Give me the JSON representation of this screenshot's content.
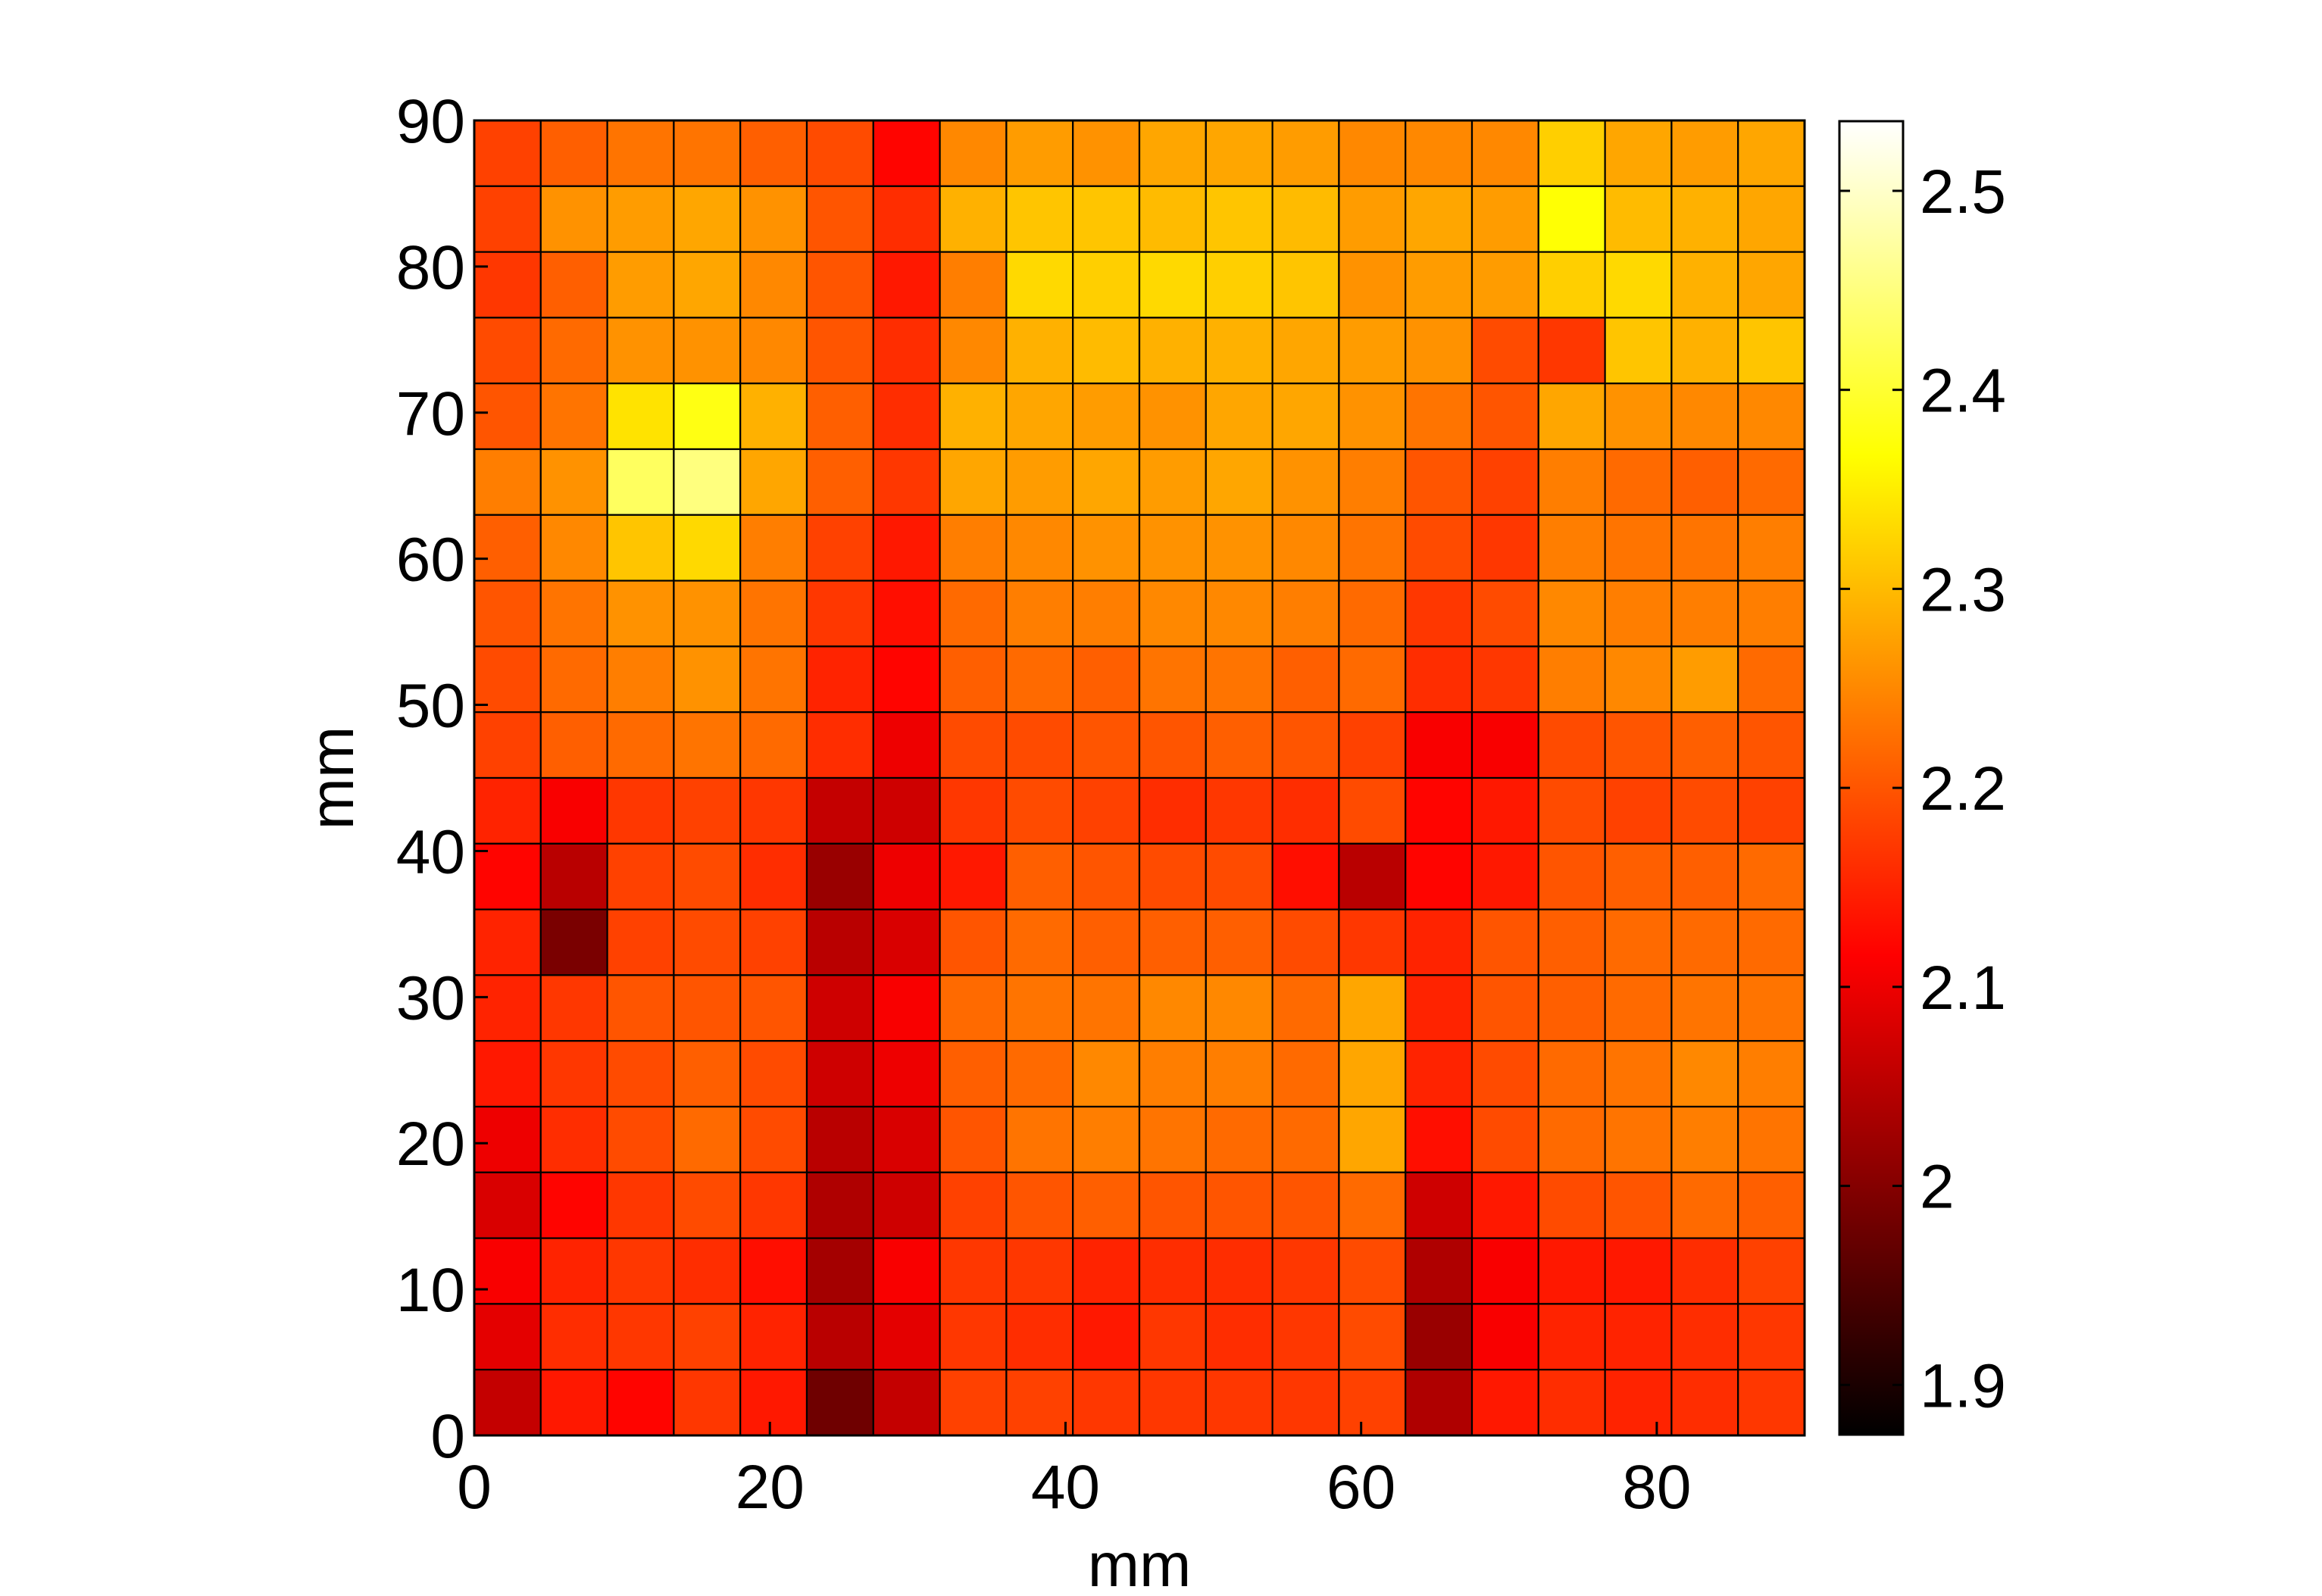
{
  "chart_data": {
    "type": "heatmap",
    "title": "",
    "xlabel": "mm",
    "ylabel": "mm",
    "x_range": [
      0,
      90
    ],
    "y_range": [
      0,
      90
    ],
    "x_ticks": [
      "0",
      "20",
      "40",
      "60",
      "80"
    ],
    "y_ticks": [
      "0",
      "10",
      "20",
      "30",
      "40",
      "50",
      "60",
      "70",
      "80",
      "90"
    ],
    "grid": true,
    "colormap": "hot",
    "color_range": [
      1.875,
      2.535
    ],
    "colorbar_ticks": [
      "1.9",
      "2",
      "2.1",
      "2.2",
      "2.3",
      "2.4",
      "2.5"
    ],
    "cell_size_mm": 4.5,
    "values_rows_top_to_bottom": [
      [
        2.18,
        2.21,
        2.23,
        2.23,
        2.21,
        2.19,
        2.12,
        2.25,
        2.27,
        2.26,
        2.28,
        2.28,
        2.27,
        2.25,
        2.25,
        2.25,
        2.32,
        2.28,
        2.27,
        2.28
      ],
      [
        2.18,
        2.26,
        2.27,
        2.28,
        2.26,
        2.2,
        2.16,
        2.29,
        2.31,
        2.31,
        2.3,
        2.31,
        2.3,
        2.27,
        2.28,
        2.27,
        2.37,
        2.3,
        2.29,
        2.28
      ],
      [
        2.17,
        2.21,
        2.27,
        2.28,
        2.25,
        2.2,
        2.14,
        2.24,
        2.33,
        2.32,
        2.33,
        2.32,
        2.31,
        2.26,
        2.27,
        2.27,
        2.32,
        2.33,
        2.29,
        2.28
      ],
      [
        2.19,
        2.22,
        2.26,
        2.26,
        2.25,
        2.2,
        2.16,
        2.25,
        2.29,
        2.3,
        2.29,
        2.29,
        2.28,
        2.27,
        2.26,
        2.19,
        2.17,
        2.31,
        2.29,
        2.31
      ],
      [
        2.2,
        2.23,
        2.34,
        2.38,
        2.29,
        2.21,
        2.16,
        2.29,
        2.28,
        2.27,
        2.26,
        2.28,
        2.28,
        2.26,
        2.23,
        2.2,
        2.28,
        2.26,
        2.25,
        2.25
      ],
      [
        2.24,
        2.26,
        2.43,
        2.45,
        2.28,
        2.21,
        2.17,
        2.28,
        2.27,
        2.28,
        2.27,
        2.28,
        2.26,
        2.24,
        2.2,
        2.18,
        2.24,
        2.22,
        2.21,
        2.22
      ],
      [
        2.21,
        2.25,
        2.31,
        2.33,
        2.24,
        2.18,
        2.14,
        2.24,
        2.25,
        2.26,
        2.26,
        2.26,
        2.25,
        2.23,
        2.19,
        2.17,
        2.24,
        2.23,
        2.23,
        2.24
      ],
      [
        2.2,
        2.23,
        2.26,
        2.26,
        2.23,
        2.17,
        2.13,
        2.22,
        2.24,
        2.24,
        2.25,
        2.25,
        2.24,
        2.22,
        2.17,
        2.19,
        2.25,
        2.24,
        2.24,
        2.24
      ],
      [
        2.19,
        2.22,
        2.24,
        2.26,
        2.23,
        2.15,
        2.12,
        2.21,
        2.22,
        2.21,
        2.23,
        2.23,
        2.21,
        2.22,
        2.16,
        2.17,
        2.24,
        2.25,
        2.27,
        2.22
      ],
      [
        2.18,
        2.21,
        2.22,
        2.23,
        2.22,
        2.16,
        2.1,
        2.19,
        2.19,
        2.2,
        2.2,
        2.21,
        2.2,
        2.18,
        2.11,
        2.11,
        2.19,
        2.2,
        2.21,
        2.2
      ],
      [
        2.15,
        2.11,
        2.17,
        2.18,
        2.17,
        2.06,
        2.07,
        2.17,
        2.19,
        2.18,
        2.16,
        2.17,
        2.16,
        2.19,
        2.12,
        2.14,
        2.19,
        2.18,
        2.19,
        2.18
      ],
      [
        2.12,
        2.05,
        2.18,
        2.19,
        2.16,
        2.02,
        2.1,
        2.14,
        2.21,
        2.2,
        2.19,
        2.19,
        2.13,
        2.05,
        2.12,
        2.14,
        2.2,
        2.21,
        2.21,
        2.22
      ],
      [
        2.15,
        1.99,
        2.18,
        2.19,
        2.18,
        2.05,
        2.08,
        2.2,
        2.22,
        2.21,
        2.21,
        2.21,
        2.19,
        2.17,
        2.15,
        2.2,
        2.21,
        2.22,
        2.22,
        2.22
      ],
      [
        2.15,
        2.17,
        2.2,
        2.2,
        2.2,
        2.07,
        2.11,
        2.22,
        2.23,
        2.23,
        2.25,
        2.25,
        2.22,
        2.28,
        2.15,
        2.2,
        2.21,
        2.22,
        2.23,
        2.23
      ],
      [
        2.14,
        2.17,
        2.19,
        2.21,
        2.19,
        2.07,
        2.1,
        2.21,
        2.22,
        2.25,
        2.24,
        2.24,
        2.22,
        2.28,
        2.15,
        2.19,
        2.22,
        2.23,
        2.25,
        2.24
      ],
      [
        2.1,
        2.16,
        2.19,
        2.22,
        2.19,
        2.05,
        2.08,
        2.2,
        2.23,
        2.24,
        2.23,
        2.22,
        2.22,
        2.28,
        2.13,
        2.19,
        2.22,
        2.23,
        2.24,
        2.23
      ],
      [
        2.08,
        2.12,
        2.17,
        2.19,
        2.17,
        2.04,
        2.07,
        2.18,
        2.2,
        2.21,
        2.2,
        2.2,
        2.2,
        2.22,
        2.07,
        2.14,
        2.19,
        2.2,
        2.22,
        2.21
      ],
      [
        2.11,
        2.15,
        2.17,
        2.16,
        2.13,
        2.03,
        2.11,
        2.17,
        2.17,
        2.15,
        2.16,
        2.16,
        2.17,
        2.19,
        2.04,
        2.11,
        2.14,
        2.14,
        2.16,
        2.18
      ],
      [
        2.09,
        2.16,
        2.17,
        2.18,
        2.15,
        2.05,
        2.09,
        2.17,
        2.16,
        2.14,
        2.17,
        2.16,
        2.17,
        2.19,
        2.02,
        2.11,
        2.15,
        2.15,
        2.16,
        2.17
      ],
      [
        2.06,
        2.14,
        2.12,
        2.17,
        2.14,
        1.98,
        2.06,
        2.18,
        2.18,
        2.17,
        2.17,
        2.17,
        2.17,
        2.18,
        2.04,
        2.14,
        2.16,
        2.15,
        2.16,
        2.17
      ]
    ]
  }
}
